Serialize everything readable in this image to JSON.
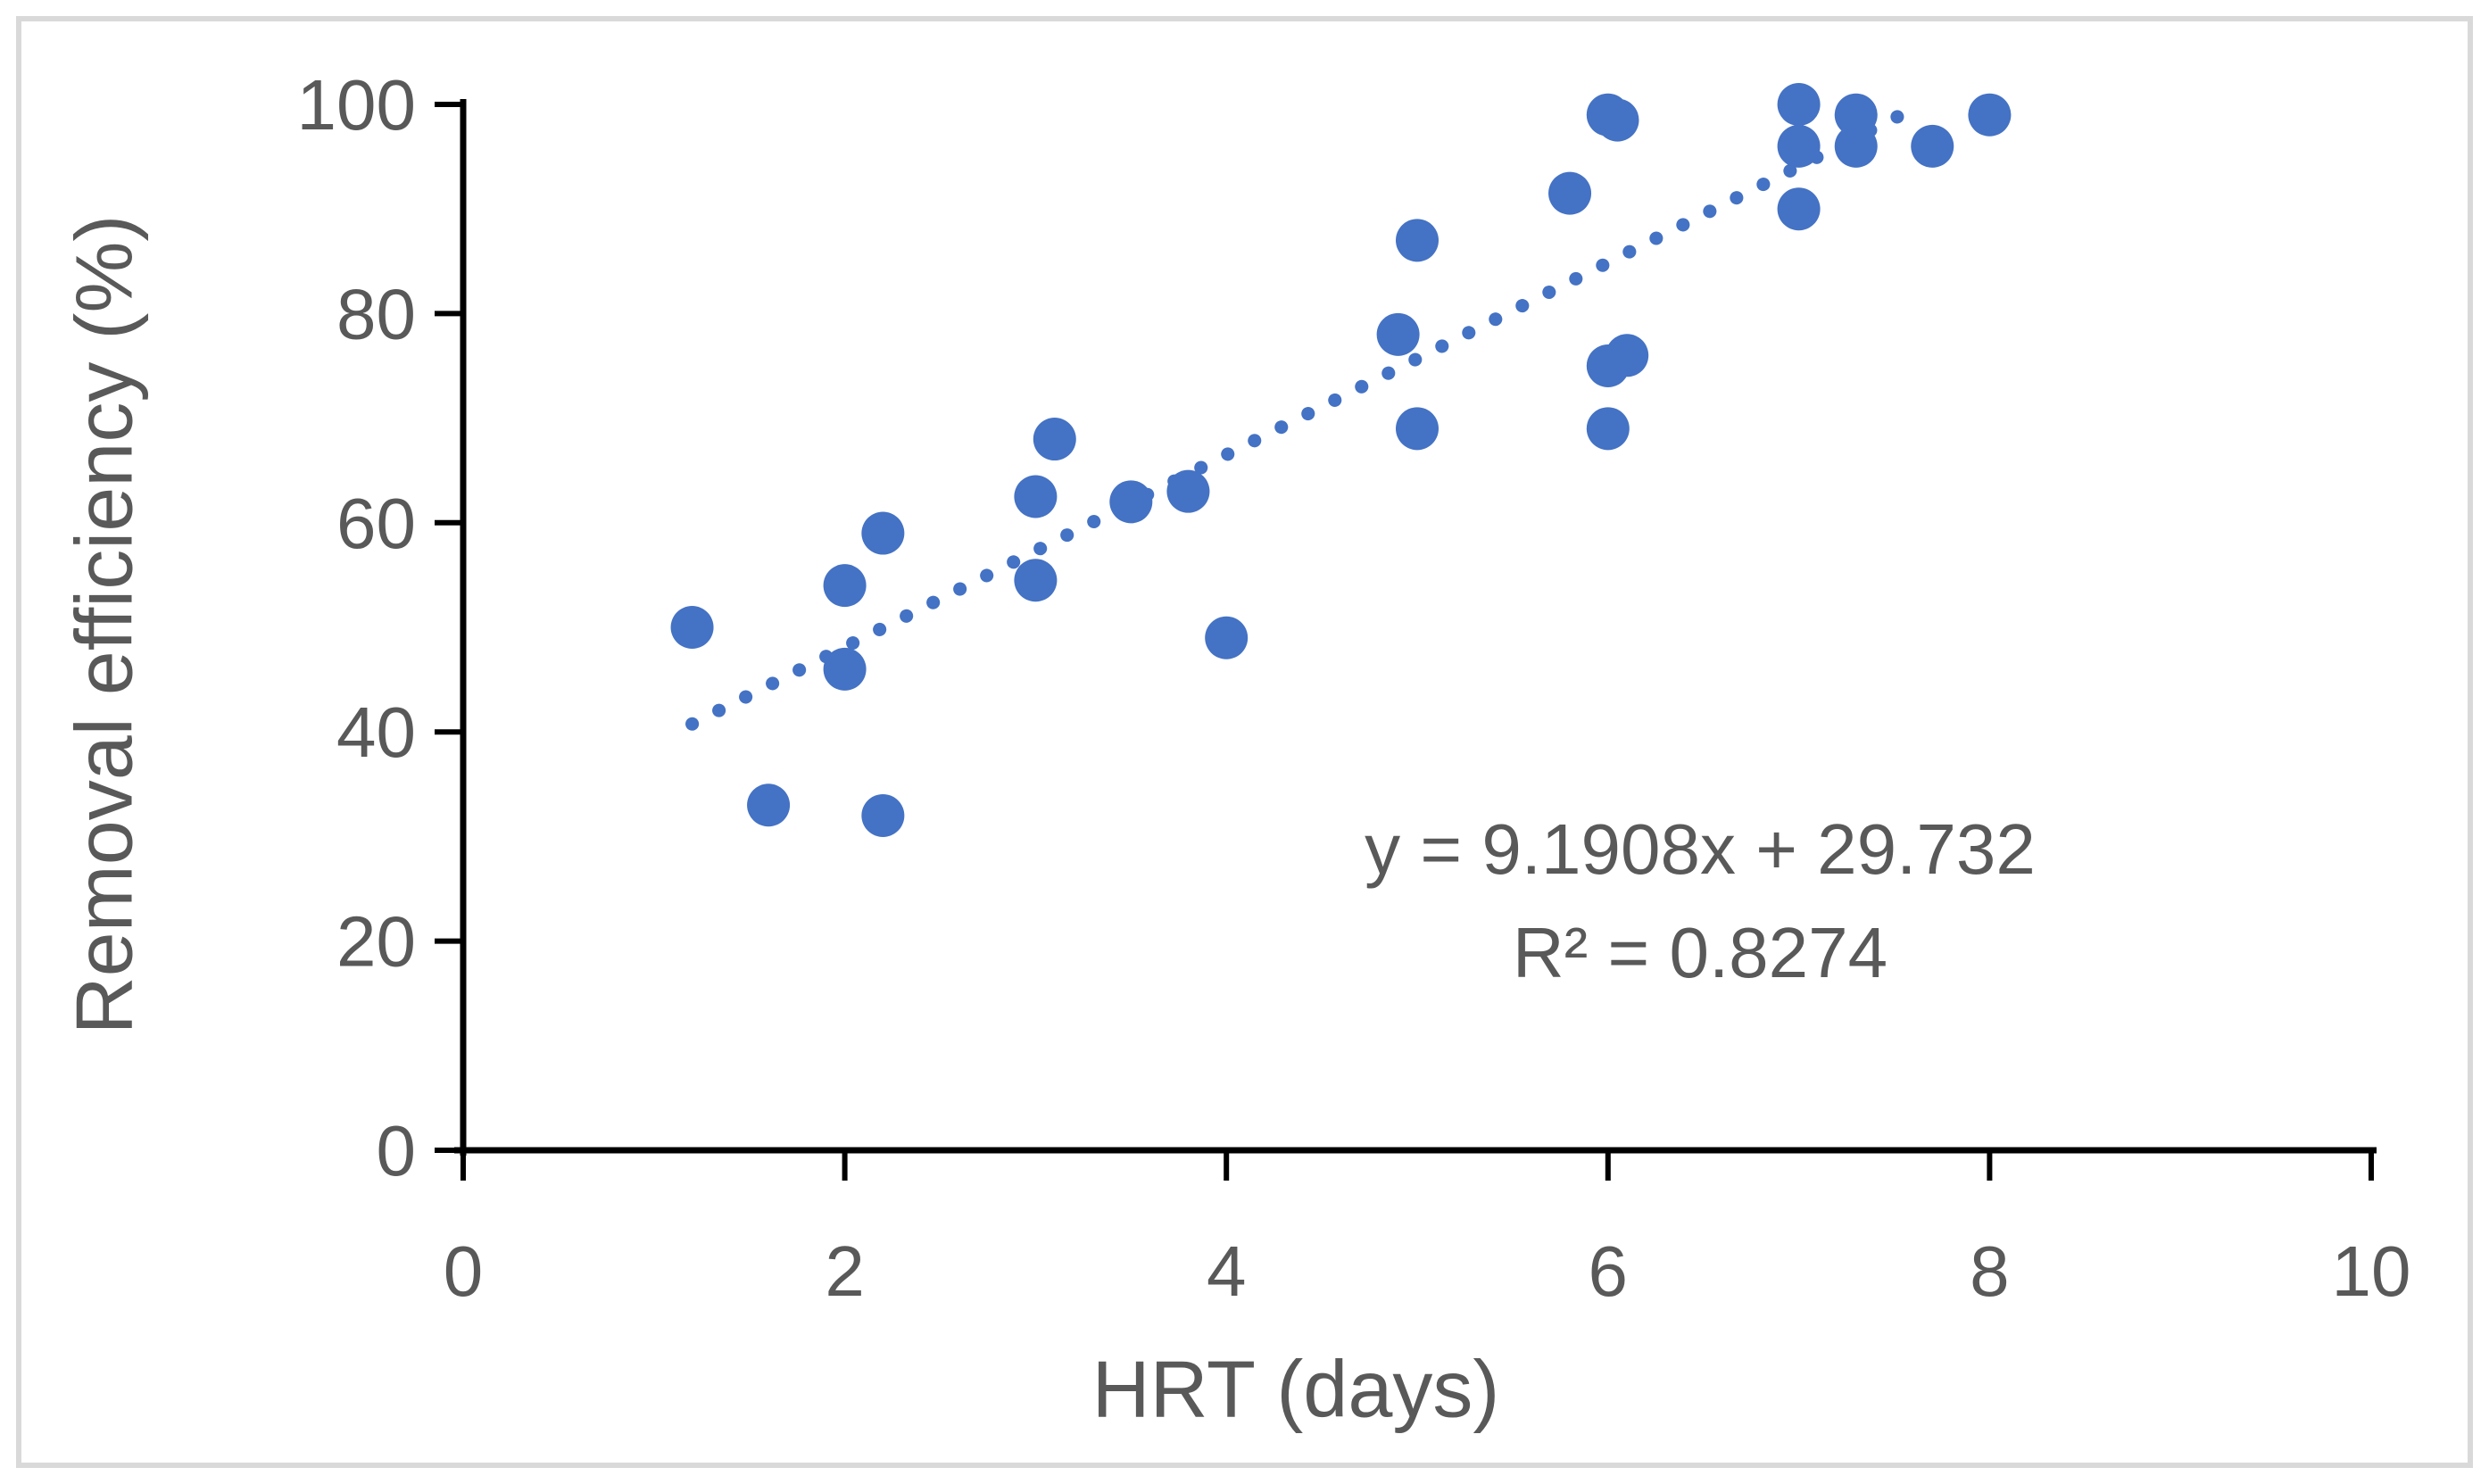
{
  "chart_data": {
    "type": "scatter",
    "title": "",
    "xlabel": "HRT (days)",
    "ylabel": "Removal efficiency (%)",
    "xlim": [
      0,
      10
    ],
    "ylim": [
      0,
      100
    ],
    "x_ticks": [
      0,
      2,
      4,
      6,
      8,
      10
    ],
    "y_ticks": [
      0,
      20,
      40,
      60,
      80,
      100
    ],
    "grid": false,
    "legend": false,
    "marker_color": "#4472C4",
    "trendline_color": "#4472C4",
    "axis_color": "#000000",
    "label_color": "#595959",
    "frame_color": "#d9d9d9",
    "points": [
      {
        "x": 1.2,
        "y": 50
      },
      {
        "x": 1.6,
        "y": 33
      },
      {
        "x": 2.0,
        "y": 54
      },
      {
        "x": 2.0,
        "y": 46
      },
      {
        "x": 2.2,
        "y": 59
      },
      {
        "x": 2.2,
        "y": 32
      },
      {
        "x": 3.0,
        "y": 62.5
      },
      {
        "x": 3.1,
        "y": 68
      },
      {
        "x": 3.0,
        "y": 54.5
      },
      {
        "x": 3.5,
        "y": 62
      },
      {
        "x": 3.8,
        "y": 63
      },
      {
        "x": 4.0,
        "y": 49
      },
      {
        "x": 4.9,
        "y": 78
      },
      {
        "x": 5.0,
        "y": 87
      },
      {
        "x": 5.0,
        "y": 69
      },
      {
        "x": 5.8,
        "y": 91.5
      },
      {
        "x": 6.0,
        "y": 99
      },
      {
        "x": 6.05,
        "y": 98.5
      },
      {
        "x": 6.0,
        "y": 75
      },
      {
        "x": 6.1,
        "y": 76
      },
      {
        "x": 6.0,
        "y": 69
      },
      {
        "x": 7.0,
        "y": 100
      },
      {
        "x": 7.0,
        "y": 96
      },
      {
        "x": 7.3,
        "y": 99
      },
      {
        "x": 7.3,
        "y": 96
      },
      {
        "x": 7.0,
        "y": 90
      },
      {
        "x": 7.7,
        "y": 96
      },
      {
        "x": 8.0,
        "y": 99
      }
    ],
    "trendline": {
      "equation": "y = 9.1908x + 29.732",
      "r_squared": "R² = 0.8274",
      "slope": 9.1908,
      "intercept": 29.732,
      "style": "dotted",
      "x_start": 1.2,
      "x_end": 7.62
    }
  }
}
